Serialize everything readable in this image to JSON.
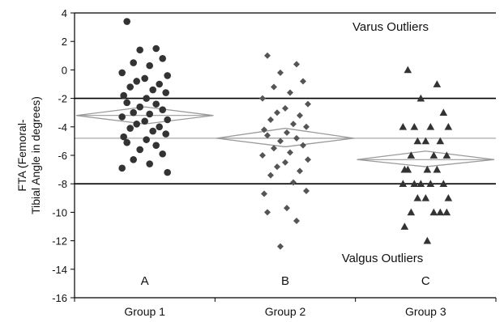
{
  "chart_data": {
    "type": "scatter",
    "ylabel_line1": "FTA (Femoral-",
    "ylabel_line2": "Tibial Angle in degrees)",
    "ylim": [
      -16,
      4
    ],
    "yticks": [
      4,
      2,
      0,
      -2,
      -4,
      -6,
      -8,
      -10,
      -12,
      -14,
      -16
    ],
    "categories": [
      "Group 1",
      "Group 2",
      "Group 3"
    ],
    "subgroup_letters": [
      "A",
      "B",
      "C"
    ],
    "annotations": {
      "upper": "Varus Outliers",
      "lower": "Valgus Outliers"
    },
    "threshold_lines": [
      -2,
      -8
    ],
    "grand_mean_line": -4.8,
    "series": [
      {
        "marker": "circle",
        "mean": -3.2,
        "ci": [
          -3.8,
          -2.6
        ],
        "values": [
          3.4,
          1.5,
          1.4,
          0.8,
          0.5,
          0.3,
          -0.2,
          -0.4,
          -0.6,
          -0.8,
          -1.0,
          -1.2,
          -1.4,
          -1.6,
          -1.8,
          -2.0,
          -2.3,
          -2.4,
          -2.6,
          -2.8,
          -3.0,
          -3.1,
          -3.3,
          -3.5,
          -3.6,
          -3.8,
          -4.0,
          -4.1,
          -4.3,
          -4.5,
          -4.7,
          -4.9,
          -5.1,
          -5.3,
          -5.6,
          -5.9,
          -6.3,
          -6.6,
          -6.9,
          -7.2
        ]
      },
      {
        "marker": "diamond",
        "mean": -4.8,
        "ci": [
          -5.4,
          -4.1
        ],
        "values": [
          1.0,
          0.4,
          -0.2,
          -0.8,
          -1.2,
          -1.6,
          -2.0,
          -2.4,
          -2.7,
          -3.0,
          -3.2,
          -3.5,
          -3.8,
          -4.0,
          -4.2,
          -4.4,
          -4.6,
          -4.8,
          -5.0,
          -5.3,
          -5.5,
          -5.8,
          -6.0,
          -6.3,
          -6.5,
          -6.8,
          -7.1,
          -7.4,
          -7.9,
          -8.5,
          -8.7,
          -9.7,
          -10.0,
          -10.6,
          -12.4
        ]
      },
      {
        "marker": "triangle",
        "mean": -6.3,
        "ci": [
          -6.8,
          -5.7
        ],
        "values": [
          0.0,
          -1.0,
          -2.0,
          -3.0,
          -4.0,
          -4.0,
          -4.0,
          -4.0,
          -5.0,
          -5.0,
          -5.0,
          -6.0,
          -6.0,
          -6.0,
          -7.0,
          -7.0,
          -7.0,
          -7.0,
          -8.0,
          -8.0,
          -8.0,
          -8.0,
          -8.0,
          -9.0,
          -9.0,
          -9.0,
          -10.0,
          -10.0,
          -10.0,
          -10.0,
          -11.0,
          -12.0
        ]
      }
    ]
  }
}
